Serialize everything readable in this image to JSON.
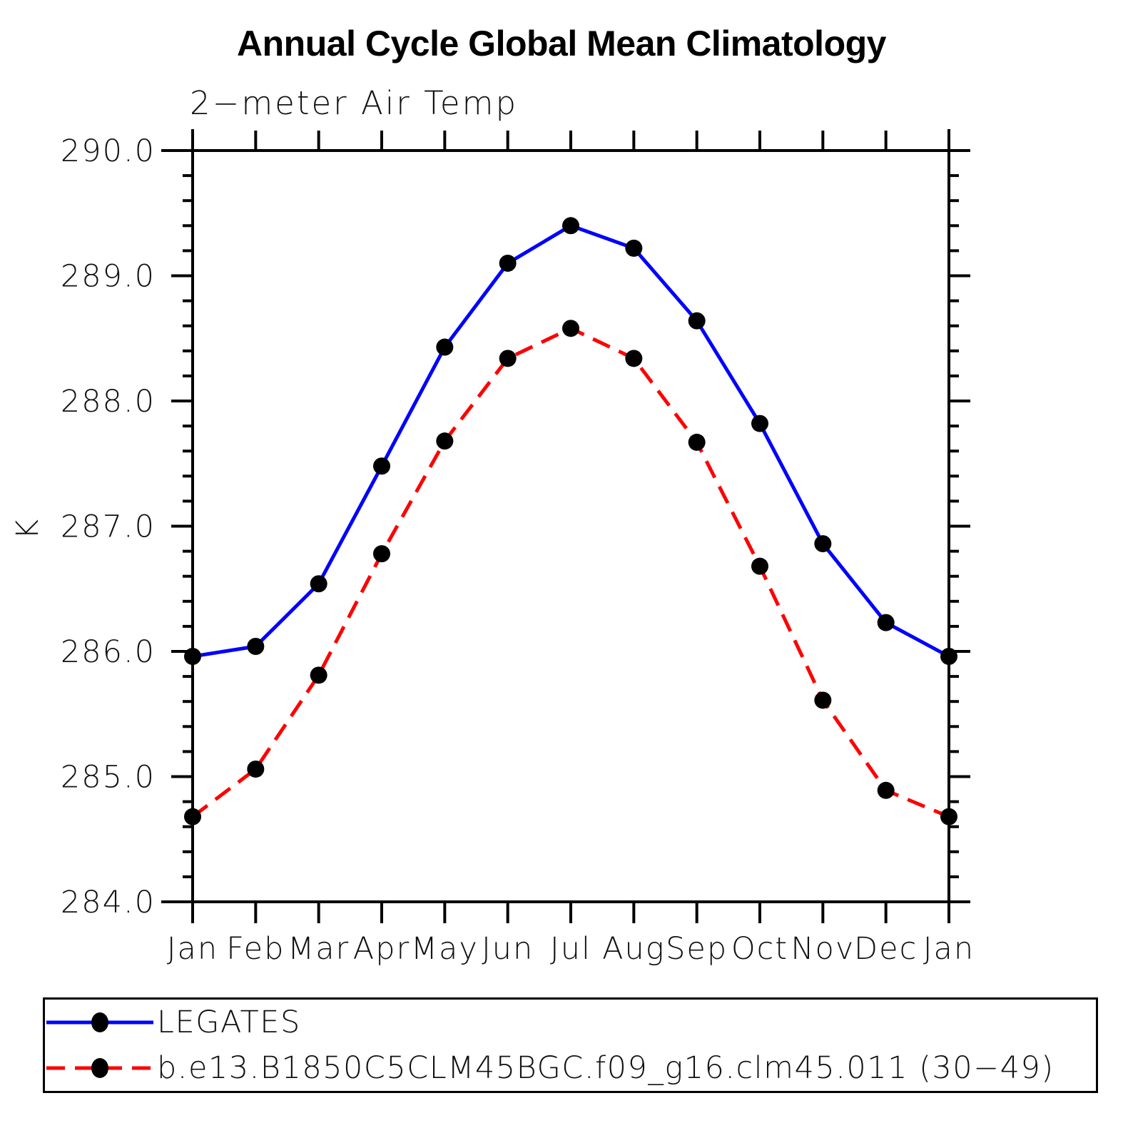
{
  "chart": {
    "title": "Annual Cycle Global Mean Climatology",
    "subtitle": "2−meter Air Temp",
    "ylabel": "K"
  },
  "legend": {
    "items": [
      {
        "label": "LEGATES",
        "color": "#0000ff",
        "line_style": "solid",
        "marker": "filled-circle",
        "marker_color": "#000000"
      },
      {
        "label": "b.e13.B1850C5CLM45BGC.f09_g16.clm45.011 (30−49)",
        "color": "#ff0000",
        "line_style": "dashed",
        "marker": "filled-circle",
        "marker_color": "#000000"
      }
    ]
  },
  "chart_data": {
    "type": "line",
    "title": "Annual Cycle Global Mean Climatology",
    "subtitle": "2−meter Air Temp",
    "xlabel": "",
    "ylabel": "K",
    "categories": [
      "Jan",
      "Feb",
      "Mar",
      "Apr",
      "May",
      "Jun",
      "Jul",
      "Aug",
      "Sep",
      "Oct",
      "Nov",
      "Dec",
      "Jan"
    ],
    "series": [
      {
        "name": "LEGATES",
        "color": "#0000ff",
        "line_style": "solid",
        "marker": "circle",
        "marker_color": "#000000",
        "values": [
          285.96,
          286.04,
          286.54,
          287.48,
          288.43,
          289.1,
          289.4,
          289.22,
          288.64,
          287.82,
          286.86,
          286.23,
          285.96
        ]
      },
      {
        "name": "b.e13.B1850C5CLM45BGC.f09_g16.clm45.011 (30−49)",
        "color": "#ff0000",
        "line_style": "dashed",
        "marker": "circle",
        "marker_color": "#000000",
        "values": [
          284.68,
          285.06,
          285.81,
          286.78,
          287.68,
          288.34,
          288.58,
          288.34,
          287.67,
          286.68,
          285.61,
          284.89,
          284.68
        ]
      }
    ],
    "ylim": [
      284.0,
      290.0
    ],
    "yticks": [
      284.0,
      285.0,
      286.0,
      287.0,
      288.0,
      289.0,
      290.0
    ],
    "ytick_labels": [
      "284.0",
      "285.0",
      "286.0",
      "287.0",
      "288.0",
      "289.0",
      "290.0"
    ],
    "y_minor_tick_interval": 0.2,
    "grid": false,
    "legend_position": "bottom"
  }
}
